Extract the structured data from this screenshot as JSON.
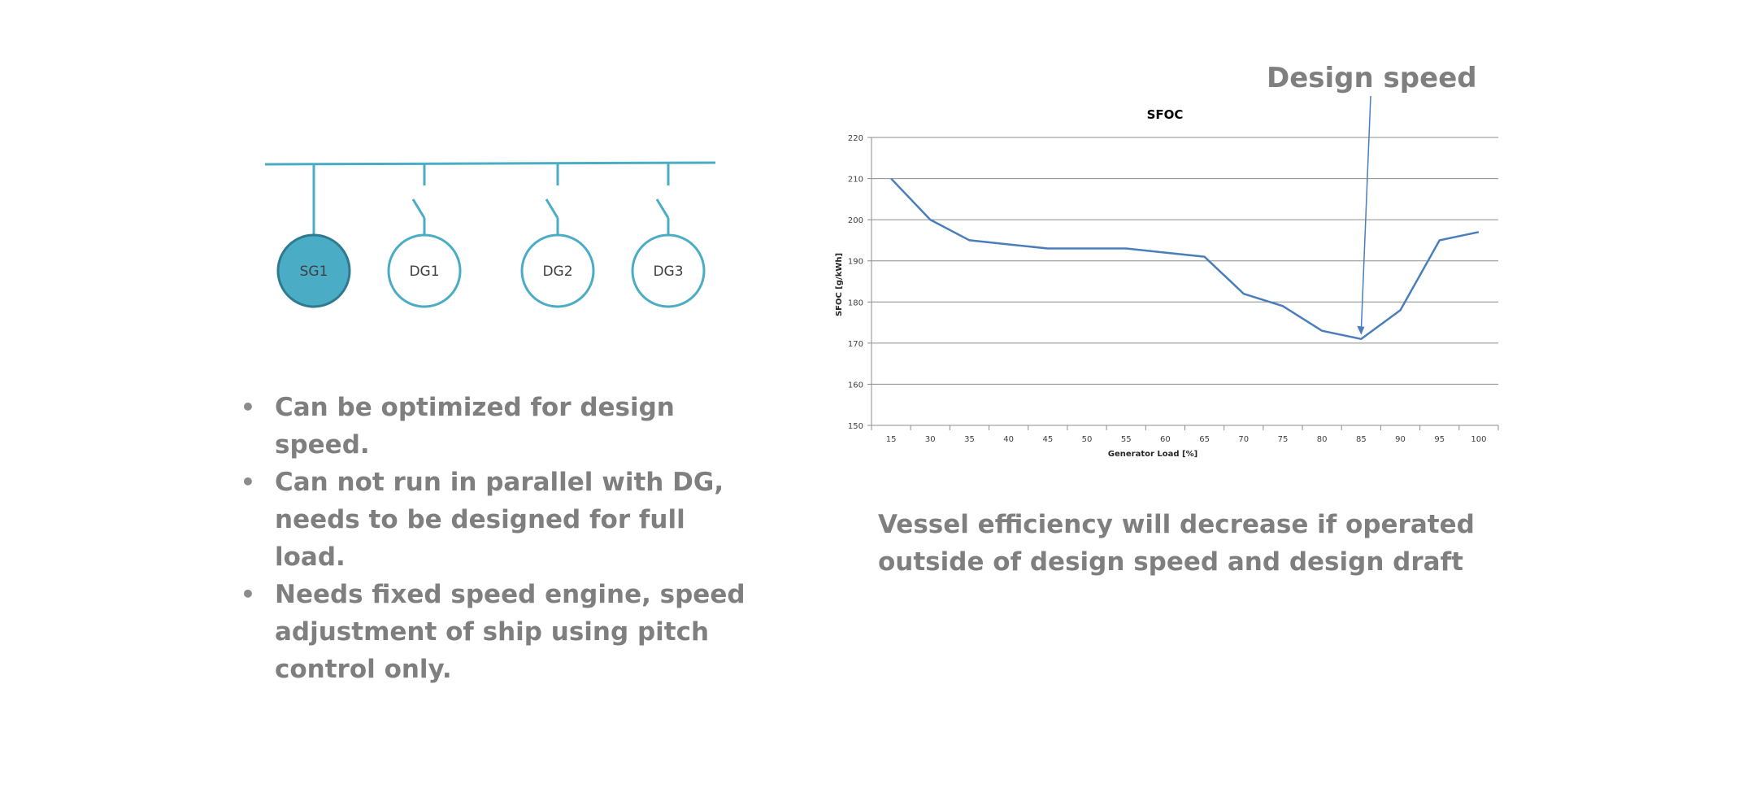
{
  "diagram": {
    "generators": [
      {
        "label": "SG1",
        "type": "shaft"
      },
      {
        "label": "DG1",
        "type": "diesel"
      },
      {
        "label": "DG2",
        "type": "diesel"
      },
      {
        "label": "DG3",
        "type": "diesel"
      }
    ],
    "colors": {
      "line": "#4bacc6",
      "sg_fill": "#4bacc6",
      "sg_stroke": "#2e7a8e"
    }
  },
  "bullets": [
    "Can be optimized for design speed.",
    "Can not run in parallel with DG, needs to be designed for full load.",
    "Needs fixed speed engine, speed adjustment of ship using pitch control only."
  ],
  "conclusion": "Vessel efficiency will decrease if operated outside of design speed and design draft",
  "annotation": {
    "text": "Design speed",
    "target_x": "85"
  },
  "chart_data": {
    "type": "line",
    "title": "SFOC",
    "xlabel": "Generator Load [%]",
    "ylabel": "SFOC [g/kWh]",
    "categories": [
      "15",
      "30",
      "35",
      "40",
      "45",
      "50",
      "55",
      "60",
      "65",
      "70",
      "75",
      "80",
      "85",
      "90",
      "95",
      "100"
    ],
    "series": [
      {
        "values": [
          210,
          200,
          195,
          194,
          193,
          193,
          193,
          192,
          191,
          182,
          179,
          173,
          171,
          178,
          195,
          197
        ]
      }
    ],
    "ylim": [
      150,
      220
    ],
    "yticks": [
      150,
      160,
      170,
      180,
      190,
      200,
      210,
      220
    ],
    "grid": true,
    "legend": "none",
    "colors": {
      "line": "#4a7ebb",
      "grid": "#8c8c8c"
    }
  }
}
